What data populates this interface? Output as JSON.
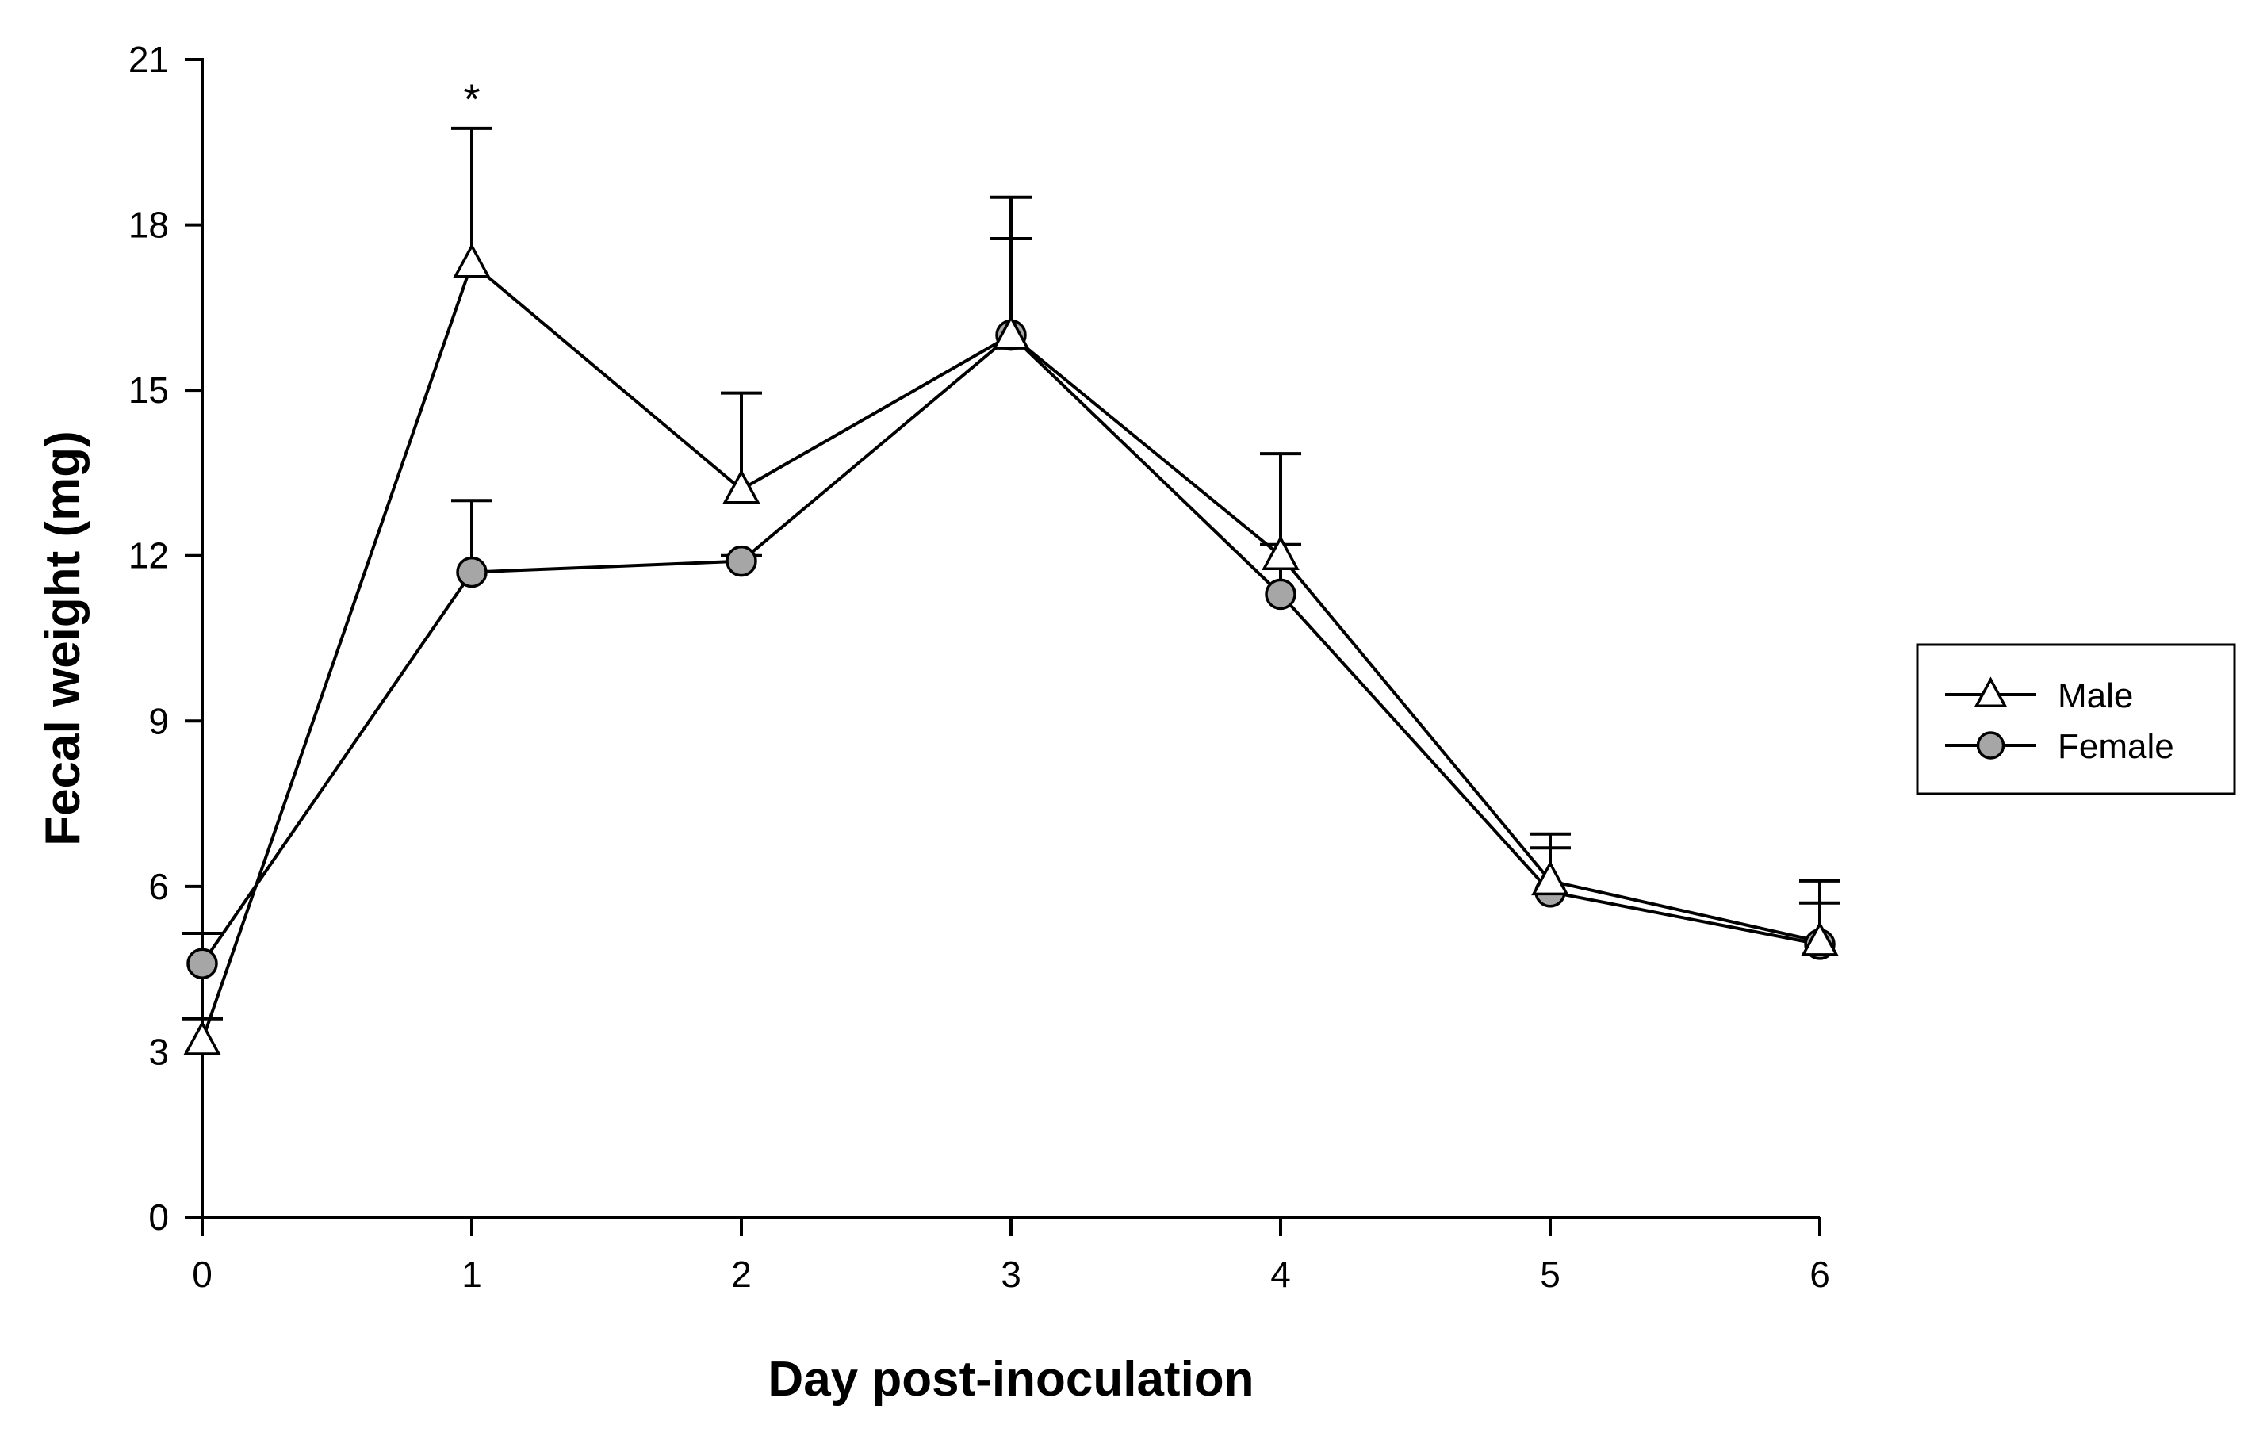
{
  "chart_data": {
    "type": "line",
    "title": "",
    "xlabel": "Day post-inoculation",
    "ylabel": "Fecal weight (mg)",
    "x": [
      0,
      1,
      2,
      3,
      4,
      5,
      6
    ],
    "xlim": [
      0,
      6
    ],
    "ylim": [
      0,
      21
    ],
    "xticks": [
      "0",
      "1",
      "2",
      "3",
      "4",
      "5",
      "6"
    ],
    "yticks": [
      "0",
      "3",
      "6",
      "9",
      "12",
      "15",
      "18",
      "21"
    ],
    "grid": false,
    "legend_position": "right",
    "series": [
      {
        "name": "Male",
        "marker": "triangle-open",
        "color": "#000000",
        "values": [
          3.2,
          17.3,
          13.2,
          16.0,
          12.0,
          6.1,
          5.0
        ],
        "error_upper": [
          0.4,
          2.45,
          1.75,
          1.75,
          1.85,
          0.6,
          0.7
        ]
      },
      {
        "name": "Female",
        "marker": "circle-filled",
        "color": "#a6a6a6",
        "values": [
          4.6,
          11.7,
          11.9,
          16.0,
          11.3,
          5.9,
          4.95
        ],
        "error_upper": [
          0.55,
          1.3,
          0.1,
          2.5,
          0.9,
          1.05,
          1.15
        ]
      }
    ],
    "annotations": [
      {
        "text": "*",
        "x": 1,
        "y": 20.3
      }
    ]
  }
}
